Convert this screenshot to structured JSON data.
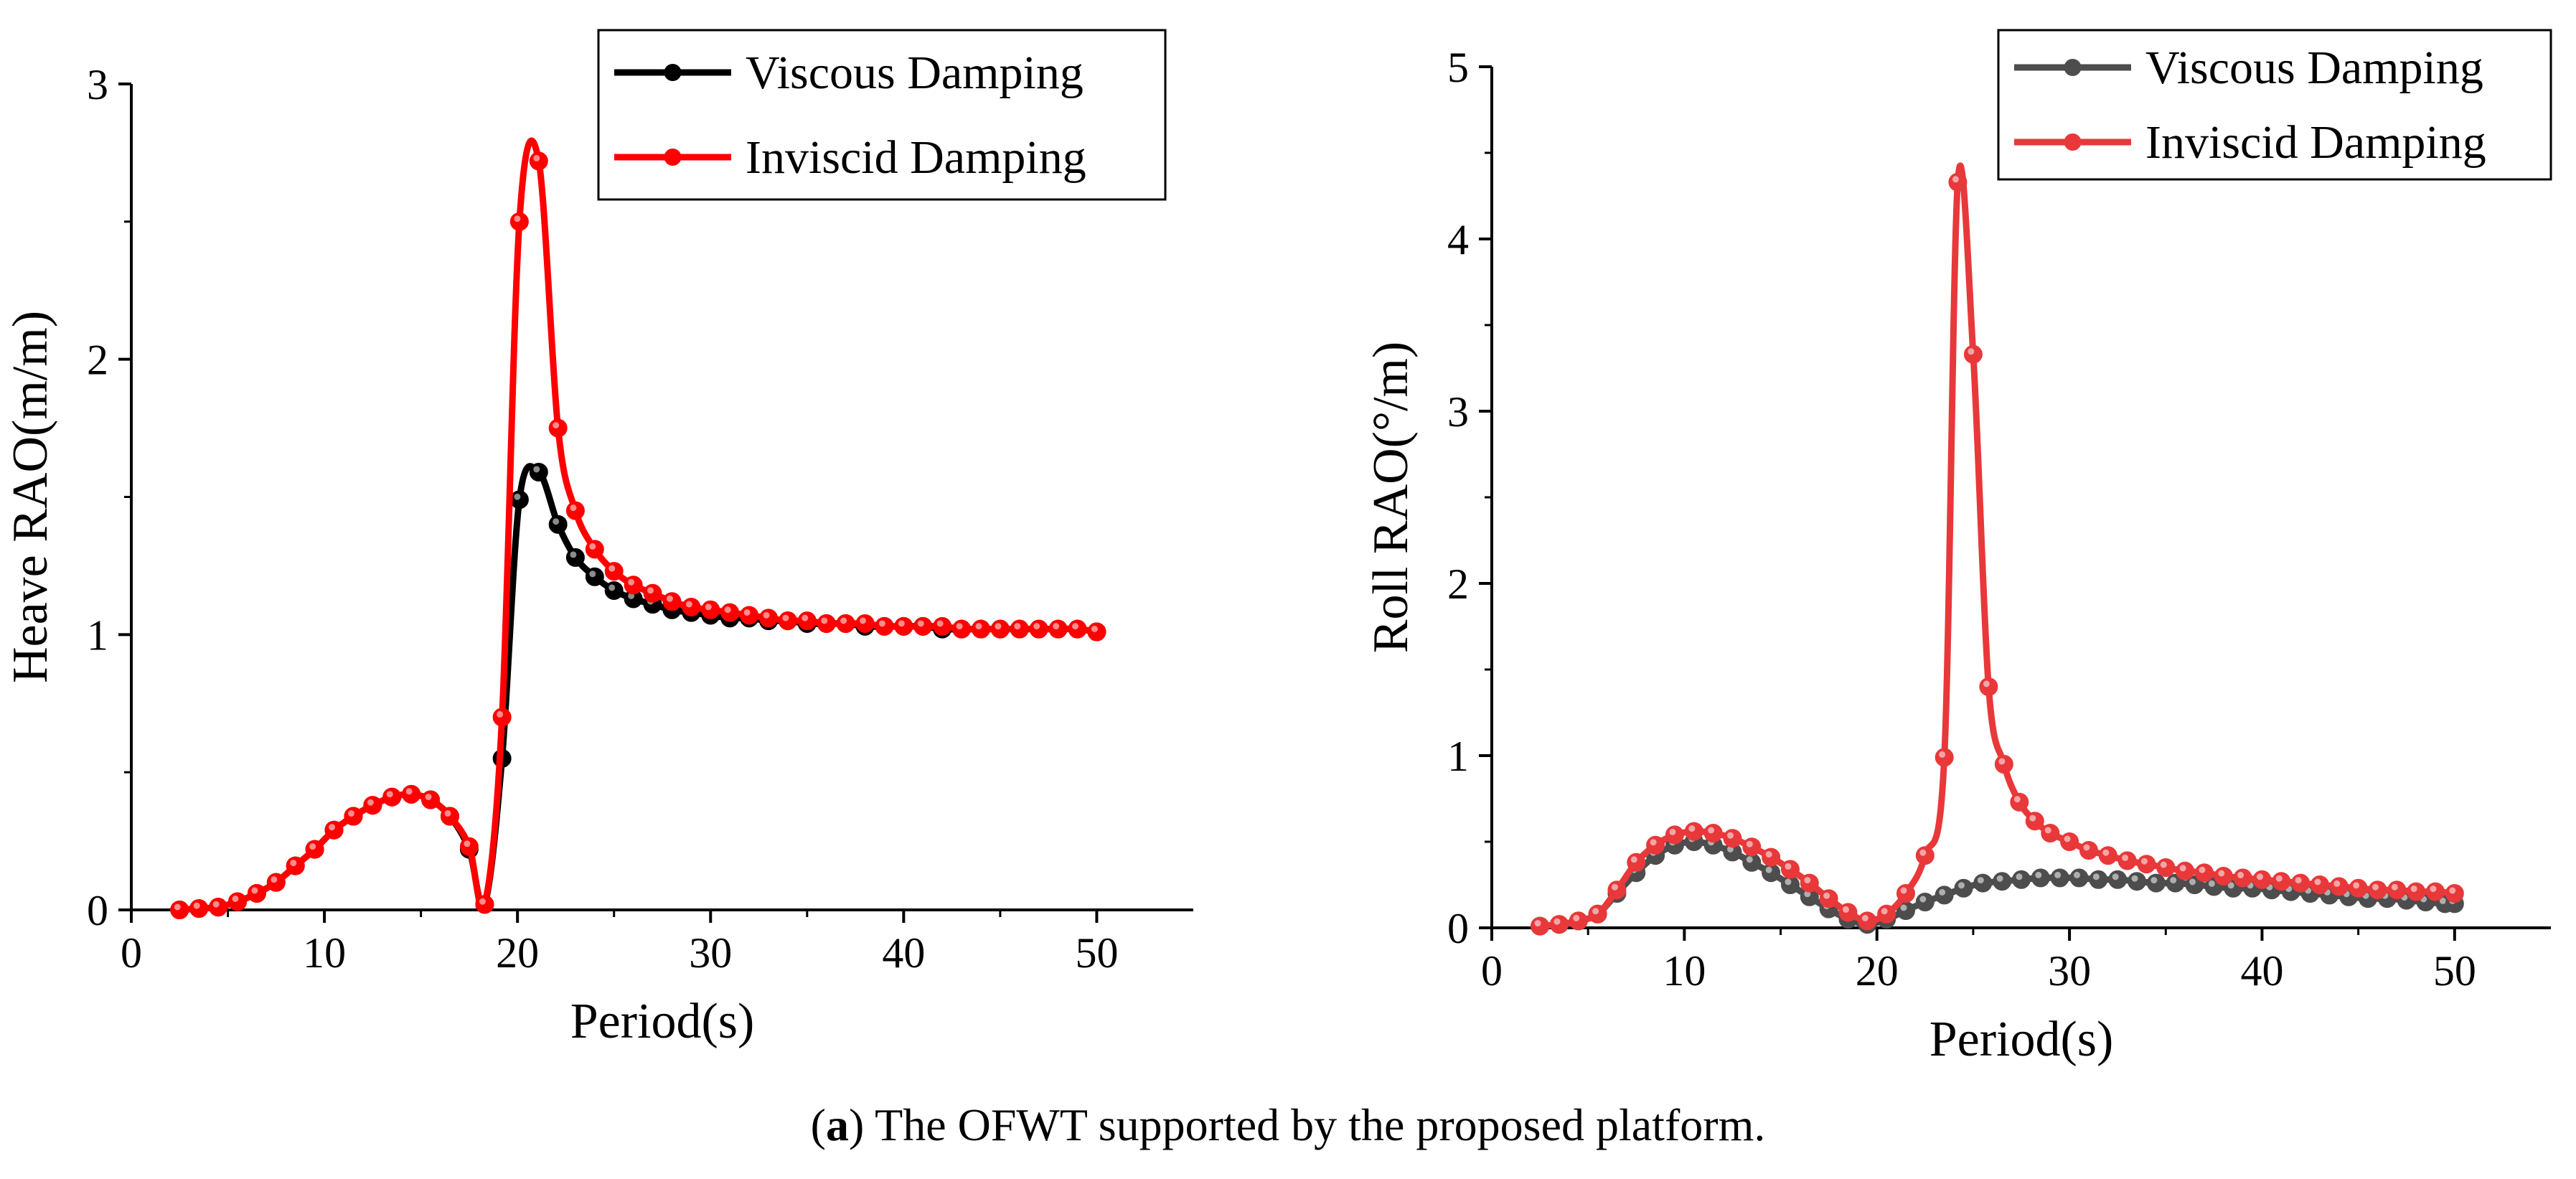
{
  "chart_data": [
    {
      "type": "line",
      "title": "",
      "xlabel": "Period(s)",
      "ylabel": "Heave RAO(m/m)",
      "xlim": [
        0,
        55
      ],
      "ylim": [
        0,
        3
      ],
      "xticks": [
        0,
        10,
        20,
        30,
        40,
        50
      ],
      "yticks": [
        0,
        1,
        2,
        3
      ],
      "legend_position": "top-right",
      "series": [
        {
          "name": "Viscous Damping",
          "color": "#000000",
          "x": [
            2.5,
            3.5,
            4.5,
            5.5,
            6.5,
            7.5,
            8.5,
            9.5,
            10.5,
            11.5,
            12.5,
            13.5,
            14.5,
            15.5,
            16.5,
            17.5,
            18.3,
            19.2,
            20.1,
            21.1,
            22.1,
            23.0,
            24.0,
            25.0,
            26.0,
            27.0,
            28.0,
            29.0,
            30.0,
            31.0,
            32.0,
            33.0,
            34.0,
            35.0,
            36.0,
            37.0,
            38.0,
            39.0,
            40.0,
            41.0,
            42.0,
            43.0,
            44.0,
            45.0,
            46.0,
            47.0,
            48.0,
            49.0,
            50.0
          ],
          "y": [
            0.0,
            0.005,
            0.01,
            0.03,
            0.06,
            0.1,
            0.16,
            0.22,
            0.29,
            0.34,
            0.38,
            0.41,
            0.42,
            0.4,
            0.34,
            0.22,
            0.02,
            0.55,
            1.49,
            1.59,
            1.4,
            1.28,
            1.21,
            1.16,
            1.13,
            1.11,
            1.09,
            1.08,
            1.07,
            1.06,
            1.06,
            1.05,
            1.05,
            1.04,
            1.04,
            1.04,
            1.03,
            1.03,
            1.03,
            1.03,
            1.02,
            1.02,
            1.02,
            1.02,
            1.02,
            1.02,
            1.02,
            1.02,
            1.01
          ]
        },
        {
          "name": "Inviscid Damping",
          "color": "#ff0000",
          "x": [
            2.5,
            3.5,
            4.5,
            5.5,
            6.5,
            7.5,
            8.5,
            9.5,
            10.5,
            11.5,
            12.5,
            13.5,
            14.5,
            15.5,
            16.5,
            17.5,
            18.3,
            19.2,
            20.1,
            21.1,
            22.1,
            23.0,
            24.0,
            25.0,
            26.0,
            27.0,
            28.0,
            29.0,
            30.0,
            31.0,
            32.0,
            33.0,
            34.0,
            35.0,
            36.0,
            37.0,
            38.0,
            39.0,
            40.0,
            41.0,
            42.0,
            43.0,
            44.0,
            45.0,
            46.0,
            47.0,
            48.0,
            49.0,
            50.0
          ],
          "y": [
            0.0,
            0.005,
            0.01,
            0.03,
            0.06,
            0.1,
            0.16,
            0.22,
            0.29,
            0.34,
            0.38,
            0.41,
            0.42,
            0.4,
            0.34,
            0.23,
            0.02,
            0.7,
            2.5,
            2.72,
            1.75,
            1.45,
            1.31,
            1.23,
            1.18,
            1.15,
            1.12,
            1.1,
            1.09,
            1.08,
            1.07,
            1.06,
            1.05,
            1.05,
            1.04,
            1.04,
            1.04,
            1.03,
            1.03,
            1.03,
            1.03,
            1.02,
            1.02,
            1.02,
            1.02,
            1.02,
            1.02,
            1.02,
            1.01
          ]
        }
      ]
    },
    {
      "type": "line",
      "title": "",
      "xlabel": "Period(s)",
      "ylabel": "Roll RAO(°/m)",
      "xlim": [
        0,
        55
      ],
      "ylim": [
        0,
        5
      ],
      "xticks": [
        0,
        10,
        20,
        30,
        40,
        50
      ],
      "yticks": [
        0,
        1,
        2,
        3,
        4,
        5
      ],
      "legend_position": "top-right",
      "series": [
        {
          "name": "Viscous Damping",
          "color": "#4d4d4d",
          "x": [
            2.5,
            3.5,
            4.5,
            5.5,
            6.5,
            7.5,
            8.5,
            9.5,
            10.5,
            11.5,
            12.5,
            13.5,
            14.5,
            15.5,
            16.5,
            17.5,
            18.5,
            19.5,
            20.5,
            21.5,
            22.5,
            23.5,
            24.5,
            25.5,
            26.5,
            27.5,
            28.5,
            29.5,
            30.5,
            31.5,
            32.5,
            33.5,
            34.5,
            35.5,
            36.5,
            37.5,
            38.5,
            39.5,
            40.5,
            41.5,
            42.5,
            43.5,
            44.5,
            45.5,
            46.5,
            47.5,
            48.5,
            49.5,
            50.0
          ],
          "y": [
            0.01,
            0.02,
            0.04,
            0.08,
            0.2,
            0.32,
            0.42,
            0.48,
            0.5,
            0.48,
            0.44,
            0.38,
            0.32,
            0.25,
            0.18,
            0.11,
            0.05,
            0.02,
            0.05,
            0.1,
            0.15,
            0.19,
            0.23,
            0.26,
            0.27,
            0.28,
            0.29,
            0.29,
            0.29,
            0.28,
            0.28,
            0.27,
            0.26,
            0.26,
            0.25,
            0.24,
            0.23,
            0.23,
            0.22,
            0.21,
            0.2,
            0.19,
            0.18,
            0.17,
            0.17,
            0.16,
            0.15,
            0.14,
            0.14
          ]
        },
        {
          "name": "Inviscid Damping",
          "color": "#e8383a",
          "x": [
            2.5,
            3.5,
            4.5,
            5.5,
            6.5,
            7.5,
            8.5,
            9.5,
            10.5,
            11.5,
            12.5,
            13.5,
            14.5,
            15.5,
            16.5,
            17.5,
            18.5,
            19.5,
            20.5,
            21.5,
            22.5,
            23.5,
            24.2,
            25.0,
            25.8,
            26.6,
            27.4,
            28.2,
            29.0,
            30.0,
            31.0,
            32.0,
            33.0,
            34.0,
            35.0,
            36.0,
            37.0,
            38.0,
            39.0,
            40.0,
            41.0,
            42.0,
            43.0,
            44.0,
            45.0,
            46.0,
            47.0,
            48.0,
            49.0,
            50.0
          ],
          "y": [
            0.01,
            0.02,
            0.04,
            0.08,
            0.22,
            0.38,
            0.48,
            0.54,
            0.56,
            0.55,
            0.52,
            0.47,
            0.41,
            0.34,
            0.26,
            0.17,
            0.09,
            0.04,
            0.08,
            0.2,
            0.42,
            0.99,
            4.33,
            3.33,
            1.4,
            0.95,
            0.73,
            0.62,
            0.55,
            0.5,
            0.45,
            0.42,
            0.39,
            0.37,
            0.35,
            0.33,
            0.32,
            0.3,
            0.29,
            0.28,
            0.27,
            0.26,
            0.25,
            0.24,
            0.23,
            0.22,
            0.22,
            0.21,
            0.21,
            0.2
          ]
        }
      ]
    }
  ],
  "caption": {
    "tag": "a",
    "text": " The OFWT supported by the proposed platform."
  }
}
